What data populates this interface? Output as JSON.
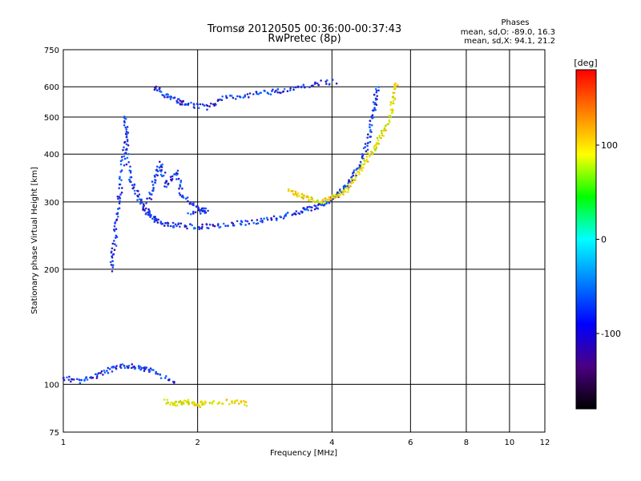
{
  "chart_data": {
    "type": "scatter",
    "title": "Tromsø 20120505 00:36:00-00:37:43",
    "subtitle": "RwPretec (8p)",
    "phases": {
      "heading": "Phases",
      "line_o": "mean, sd,O: -89.0, 16.3",
      "line_x": "mean, sd,X:  94.1, 21.2"
    },
    "xlabel": "Frequency [MHz]",
    "ylabel": "Stationary phase Virtual Height [km]",
    "x_scale": "log",
    "y_scale": "log",
    "xlim": [
      1,
      12
    ],
    "ylim": [
      75,
      750
    ],
    "x_ticks": [
      1,
      2,
      4,
      6,
      8,
      10,
      12
    ],
    "y_ticks": [
      75,
      100,
      200,
      300,
      400,
      500,
      600,
      750
    ],
    "grid": true,
    "colorbar": {
      "label": "[deg]",
      "range": [
        -180,
        180
      ],
      "ticks": [
        100,
        0,
        -100
      ],
      "palette": [
        "#000000",
        "#4b0082",
        "#0000ff",
        "#0080ff",
        "#00ffff",
        "#00ff00",
        "#ffff00",
        "#ff8000",
        "#ff0000"
      ]
    },
    "series": [
      {
        "trace": [
          [
            1.0,
            104
          ],
          [
            1.1,
            102
          ],
          [
            1.2,
            106
          ],
          [
            1.3,
            110
          ],
          [
            1.4,
            112
          ],
          [
            1.5,
            110
          ],
          [
            1.6,
            108
          ],
          [
            1.8,
            100
          ],
          [
            1.28,
            200
          ],
          [
            1.3,
            230
          ],
          [
            1.32,
            270
          ],
          [
            1.34,
            320
          ],
          [
            1.36,
            380
          ],
          [
            1.38,
            430
          ],
          [
            1.38,
            500
          ],
          [
            1.4,
            360
          ],
          [
            1.45,
            320
          ],
          [
            1.5,
            295
          ],
          [
            1.55,
            280
          ],
          [
            1.6,
            270
          ],
          [
            1.7,
            263
          ],
          [
            1.8,
            260
          ],
          [
            2.0,
            258
          ],
          [
            2.2,
            260
          ],
          [
            2.5,
            264
          ],
          [
            2.8,
            268
          ],
          [
            3.1,
            275
          ],
          [
            3.4,
            283
          ],
          [
            3.6,
            288
          ],
          [
            3.8,
            295
          ],
          [
            4.0,
            305
          ],
          [
            4.2,
            320
          ],
          [
            4.4,
            340
          ],
          [
            4.6,
            370
          ],
          [
            4.8,
            420
          ],
          [
            4.9,
            480
          ],
          [
            5.0,
            540
          ],
          [
            5.05,
            600
          ],
          [
            1.6,
            600
          ],
          [
            1.7,
            570
          ],
          [
            1.8,
            550
          ],
          [
            1.9,
            540
          ],
          [
            2.1,
            530
          ],
          [
            2.3,
            560
          ],
          [
            2.6,
            570
          ],
          [
            2.9,
            580
          ],
          [
            3.2,
            590
          ],
          [
            3.6,
            610
          ],
          [
            4.1,
            620
          ],
          [
            1.55,
            300
          ],
          [
            1.6,
            340
          ],
          [
            1.65,
            380
          ],
          [
            1.7,
            330
          ],
          [
            1.8,
            360
          ],
          [
            1.85,
            310
          ],
          [
            2.0,
            290
          ],
          [
            2.1,
            285
          ],
          [
            1.9,
            280
          ]
        ]
      },
      {
        "trace": [
          [
            1.7,
            90
          ],
          [
            1.8,
            89
          ],
          [
            1.9,
            90
          ],
          [
            2.0,
            88
          ],
          [
            2.1,
            90
          ],
          [
            2.4,
            90
          ],
          [
            2.6,
            89
          ],
          [
            3.2,
            320
          ],
          [
            3.4,
            312
          ],
          [
            3.6,
            305
          ],
          [
            3.8,
            300
          ],
          [
            4.0,
            308
          ],
          [
            4.2,
            315
          ],
          [
            4.4,
            330
          ],
          [
            4.6,
            360
          ],
          [
            4.8,
            390
          ],
          [
            5.0,
            420
          ],
          [
            5.2,
            450
          ],
          [
            5.4,
            500
          ],
          [
            5.5,
            560
          ],
          [
            5.6,
            620
          ]
        ]
      }
    ]
  }
}
